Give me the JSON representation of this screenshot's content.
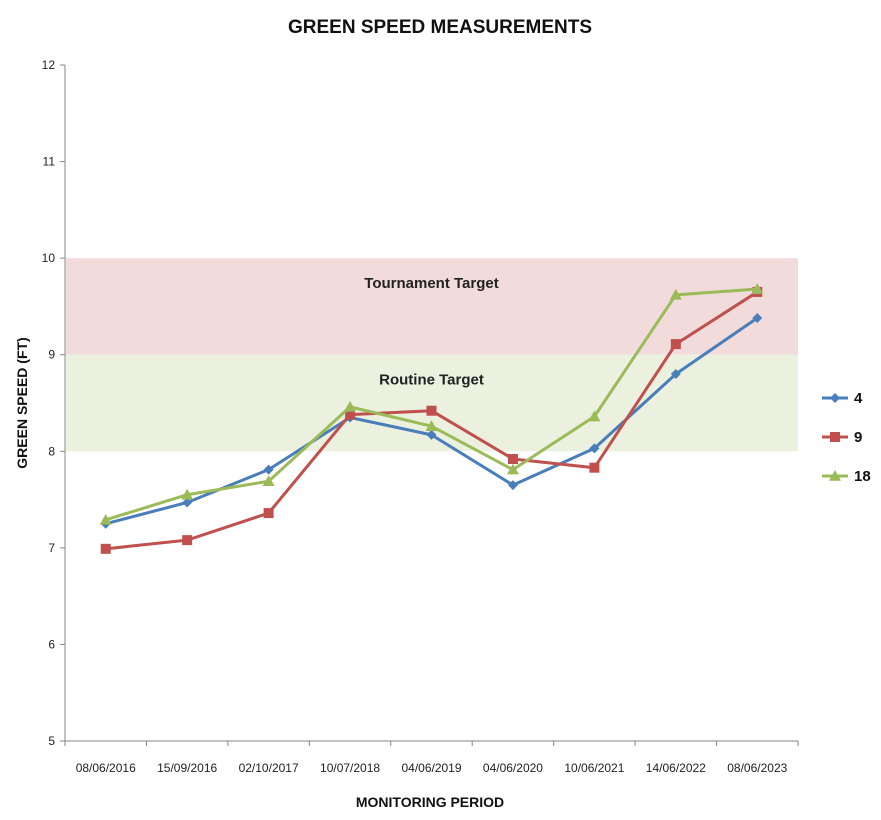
{
  "chart_data": {
    "type": "line",
    "title": "GREEN SPEED MEASUREMENTS",
    "xlabel": "MONITORING PERIOD",
    "ylabel": "GREEN SPEED (FT)",
    "ylim": [
      5,
      12
    ],
    "yticks": [
      5,
      6,
      7,
      8,
      9,
      10,
      11,
      12
    ],
    "categories": [
      "08/06/2016",
      "15/09/2016",
      "02/10/2017",
      "10/07/2018",
      "04/06/2019",
      "04/06/2020",
      "10/06/2021",
      "14/06/2022",
      "08/06/2023"
    ],
    "series": [
      {
        "name": "4",
        "color": "#4a7ebb",
        "marker": "diamond",
        "values": [
          7.25,
          7.47,
          7.81,
          8.35,
          8.17,
          7.65,
          8.03,
          8.8,
          9.38
        ]
      },
      {
        "name": "9",
        "color": "#c0504d",
        "marker": "square",
        "values": [
          6.99,
          7.08,
          7.36,
          8.38,
          8.42,
          7.92,
          7.83,
          9.11,
          9.65
        ]
      },
      {
        "name": "18",
        "color": "#9bbb59",
        "marker": "triangle",
        "values": [
          7.29,
          7.55,
          7.69,
          8.46,
          8.26,
          7.81,
          8.36,
          9.62,
          9.68
        ]
      }
    ],
    "bands": [
      {
        "label": "Tournament Target",
        "from": 9,
        "to": 10,
        "color": "#f2dcdb"
      },
      {
        "label": "Routine Target",
        "from": 8,
        "to": 9,
        "color": "#ebf1de"
      }
    ],
    "grid": false,
    "legend_position": "right"
  }
}
